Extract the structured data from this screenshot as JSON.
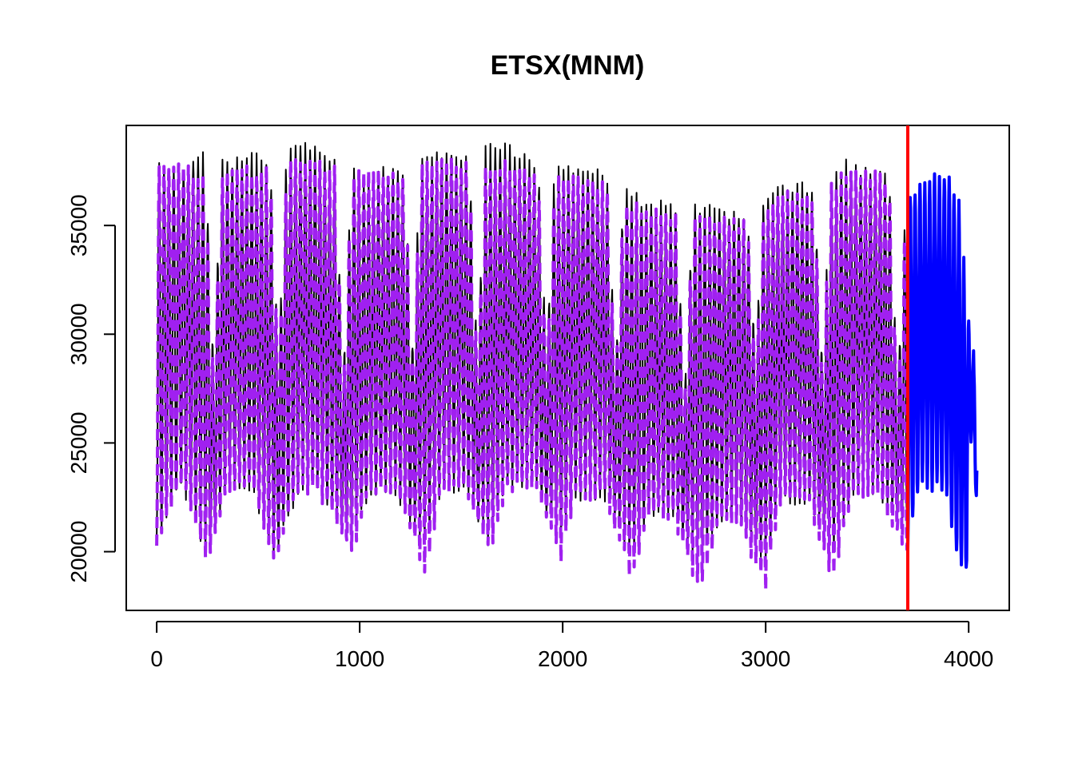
{
  "chart_data": {
    "type": "line",
    "title": "ETSX(MNM)",
    "xlabel": "",
    "ylabel": "",
    "xlim": [
      -150,
      4200
    ],
    "ylim": [
      17300,
      39600
    ],
    "x_ticks": [
      0,
      1000,
      2000,
      3000,
      4000
    ],
    "x_tick_labels": [
      "0",
      "1000",
      "2000",
      "3000",
      "4000"
    ],
    "y_ticks": [
      20000,
      25000,
      30000,
      35000
    ],
    "y_tick_labels": [
      "20000",
      "25000",
      "30000",
      "35000"
    ],
    "grid": false,
    "legend": "none",
    "holdout_start": 3700,
    "series": [
      {
        "color": "#000000",
        "style": "solid",
        "role": "actuals",
        "x_range": [
          0,
          3700
        ],
        "cycle_length": 24,
        "weekly_peaks": [
          [
            0,
            38000
          ],
          [
            120,
            37500
          ],
          [
            210,
            38500
          ],
          [
            360,
            37800
          ],
          [
            470,
            38200
          ],
          [
            560,
            37800
          ],
          [
            700,
            38800
          ],
          [
            780,
            38700
          ],
          [
            870,
            38000
          ],
          [
            1020,
            37200
          ],
          [
            1140,
            37500
          ],
          [
            1220,
            37500
          ],
          [
            1360,
            38200
          ],
          [
            1440,
            38300
          ],
          [
            1520,
            38000
          ],
          [
            1700,
            38700
          ],
          [
            1780,
            38300
          ],
          [
            1880,
            37600
          ],
          [
            2000,
            37500
          ],
          [
            2130,
            37400
          ],
          [
            2230,
            37200
          ],
          [
            2370,
            36200
          ],
          [
            2450,
            36000
          ],
          [
            2560,
            35800
          ],
          [
            2690,
            35800
          ],
          [
            2790,
            35500
          ],
          [
            2900,
            35500
          ],
          [
            3050,
            36800
          ],
          [
            3170,
            36800
          ],
          [
            3250,
            36400
          ],
          [
            3400,
            37800
          ],
          [
            3470,
            37400
          ],
          [
            3580,
            37500
          ],
          [
            3700,
            36000
          ]
        ],
        "weekly_troughs": [
          [
            0,
            20500
          ],
          [
            120,
            23300
          ],
          [
            250,
            19800
          ],
          [
            350,
            23000
          ],
          [
            470,
            23000
          ],
          [
            580,
            19800
          ],
          [
            700,
            23000
          ],
          [
            800,
            22800
          ],
          [
            960,
            20300
          ],
          [
            1050,
            22900
          ],
          [
            1170,
            22900
          ],
          [
            1330,
            20200
          ],
          [
            1400,
            23000
          ],
          [
            1520,
            23000
          ],
          [
            1640,
            20300
          ],
          [
            1720,
            23000
          ],
          [
            1870,
            23000
          ],
          [
            1990,
            20500
          ],
          [
            2060,
            22600
          ],
          [
            2210,
            22600
          ],
          [
            2340,
            19700
          ],
          [
            2430,
            21900
          ],
          [
            2540,
            21700
          ],
          [
            2680,
            19500
          ],
          [
            2770,
            21400
          ],
          [
            2870,
            21300
          ],
          [
            3000,
            19600
          ],
          [
            3070,
            22400
          ],
          [
            3210,
            22400
          ],
          [
            3330,
            20100
          ],
          [
            3430,
            22800
          ],
          [
            3550,
            22800
          ],
          [
            3700,
            20600
          ]
        ],
        "weekend_dips": [
          [
            280,
            28500
          ],
          [
            600,
            28800
          ],
          [
            920,
            28000
          ],
          [
            1260,
            29200
          ],
          [
            1580,
            28500
          ],
          [
            1920,
            28800
          ],
          [
            2260,
            28200
          ],
          [
            2600,
            27200
          ],
          [
            2950,
            28800
          ],
          [
            3280,
            28500
          ],
          [
            3650,
            27300
          ]
        ]
      },
      {
        "color": "#a020f0",
        "style": "dashed",
        "role": "fitted",
        "x_range": [
          0,
          3700
        ],
        "cycle_length": 24,
        "weekly_peaks": [
          [
            0,
            37500
          ],
          [
            120,
            37800
          ],
          [
            210,
            37200
          ],
          [
            360,
            37300
          ],
          [
            470,
            37600
          ],
          [
            560,
            37400
          ],
          [
            700,
            37900
          ],
          [
            780,
            37800
          ],
          [
            870,
            37500
          ],
          [
            1020,
            37200
          ],
          [
            1140,
            37400
          ],
          [
            1220,
            37200
          ],
          [
            1360,
            37800
          ],
          [
            1440,
            37900
          ],
          [
            1520,
            37600
          ],
          [
            1700,
            37800
          ],
          [
            1780,
            37700
          ],
          [
            1880,
            37300
          ],
          [
            2000,
            37000
          ],
          [
            2130,
            37100
          ],
          [
            2230,
            36800
          ],
          [
            2370,
            35800
          ],
          [
            2450,
            35600
          ],
          [
            2560,
            35400
          ],
          [
            2690,
            35200
          ],
          [
            2790,
            35300
          ],
          [
            2900,
            35000
          ],
          [
            3050,
            36300
          ],
          [
            3170,
            36400
          ],
          [
            3250,
            36000
          ],
          [
            3400,
            37400
          ],
          [
            3470,
            37300
          ],
          [
            3580,
            37200
          ],
          [
            3700,
            35500
          ]
        ],
        "weekly_troughs": [
          [
            0,
            20500
          ],
          [
            120,
            23300
          ],
          [
            250,
            19700
          ],
          [
            350,
            23000
          ],
          [
            470,
            23000
          ],
          [
            580,
            19700
          ],
          [
            700,
            23000
          ],
          [
            800,
            22800
          ],
          [
            960,
            19800
          ],
          [
            1050,
            22900
          ],
          [
            1170,
            22900
          ],
          [
            1330,
            18900
          ],
          [
            1400,
            23000
          ],
          [
            1520,
            23000
          ],
          [
            1640,
            19900
          ],
          [
            1720,
            23000
          ],
          [
            1870,
            23000
          ],
          [
            1990,
            19500
          ],
          [
            2060,
            22600
          ],
          [
            2210,
            22600
          ],
          [
            2340,
            18800
          ],
          [
            2430,
            21900
          ],
          [
            2540,
            21700
          ],
          [
            2680,
            18200
          ],
          [
            2770,
            21400
          ],
          [
            2870,
            21300
          ],
          [
            3000,
            18400
          ],
          [
            3070,
            22400
          ],
          [
            3210,
            22400
          ],
          [
            3330,
            18800
          ],
          [
            3430,
            22800
          ],
          [
            3550,
            22800
          ],
          [
            3700,
            19800
          ]
        ],
        "weekend_dips": [
          [
            280,
            27800
          ],
          [
            600,
            28100
          ],
          [
            920,
            27400
          ],
          [
            1260,
            28600
          ],
          [
            1580,
            27900
          ],
          [
            1920,
            28100
          ],
          [
            2260,
            27600
          ],
          [
            2600,
            26800
          ],
          [
            2950,
            28300
          ],
          [
            3280,
            27900
          ],
          [
            3650,
            26900
          ]
        ]
      },
      {
        "color": "#0000ff",
        "style": "solid",
        "role": "forecast",
        "x_range": [
          3700,
          4040
        ],
        "cycle_length": 24,
        "weekly_peaks": [
          [
            3700,
            36400
          ],
          [
            3820,
            37200
          ],
          [
            3900,
            37300
          ],
          [
            3960,
            35800
          ],
          [
            3990,
            31000
          ],
          [
            4010,
            30200
          ],
          [
            4040,
            27500
          ]
        ],
        "weekly_troughs": [
          [
            3700,
            20200
          ],
          [
            3760,
            23100
          ],
          [
            3880,
            23000
          ],
          [
            3940,
            19900
          ],
          [
            3990,
            19000
          ],
          [
            4010,
            25500
          ],
          [
            4040,
            22300
          ]
        ]
      }
    ],
    "vertical_lines": [
      {
        "x": 3700,
        "color": "#ff0000"
      }
    ]
  }
}
